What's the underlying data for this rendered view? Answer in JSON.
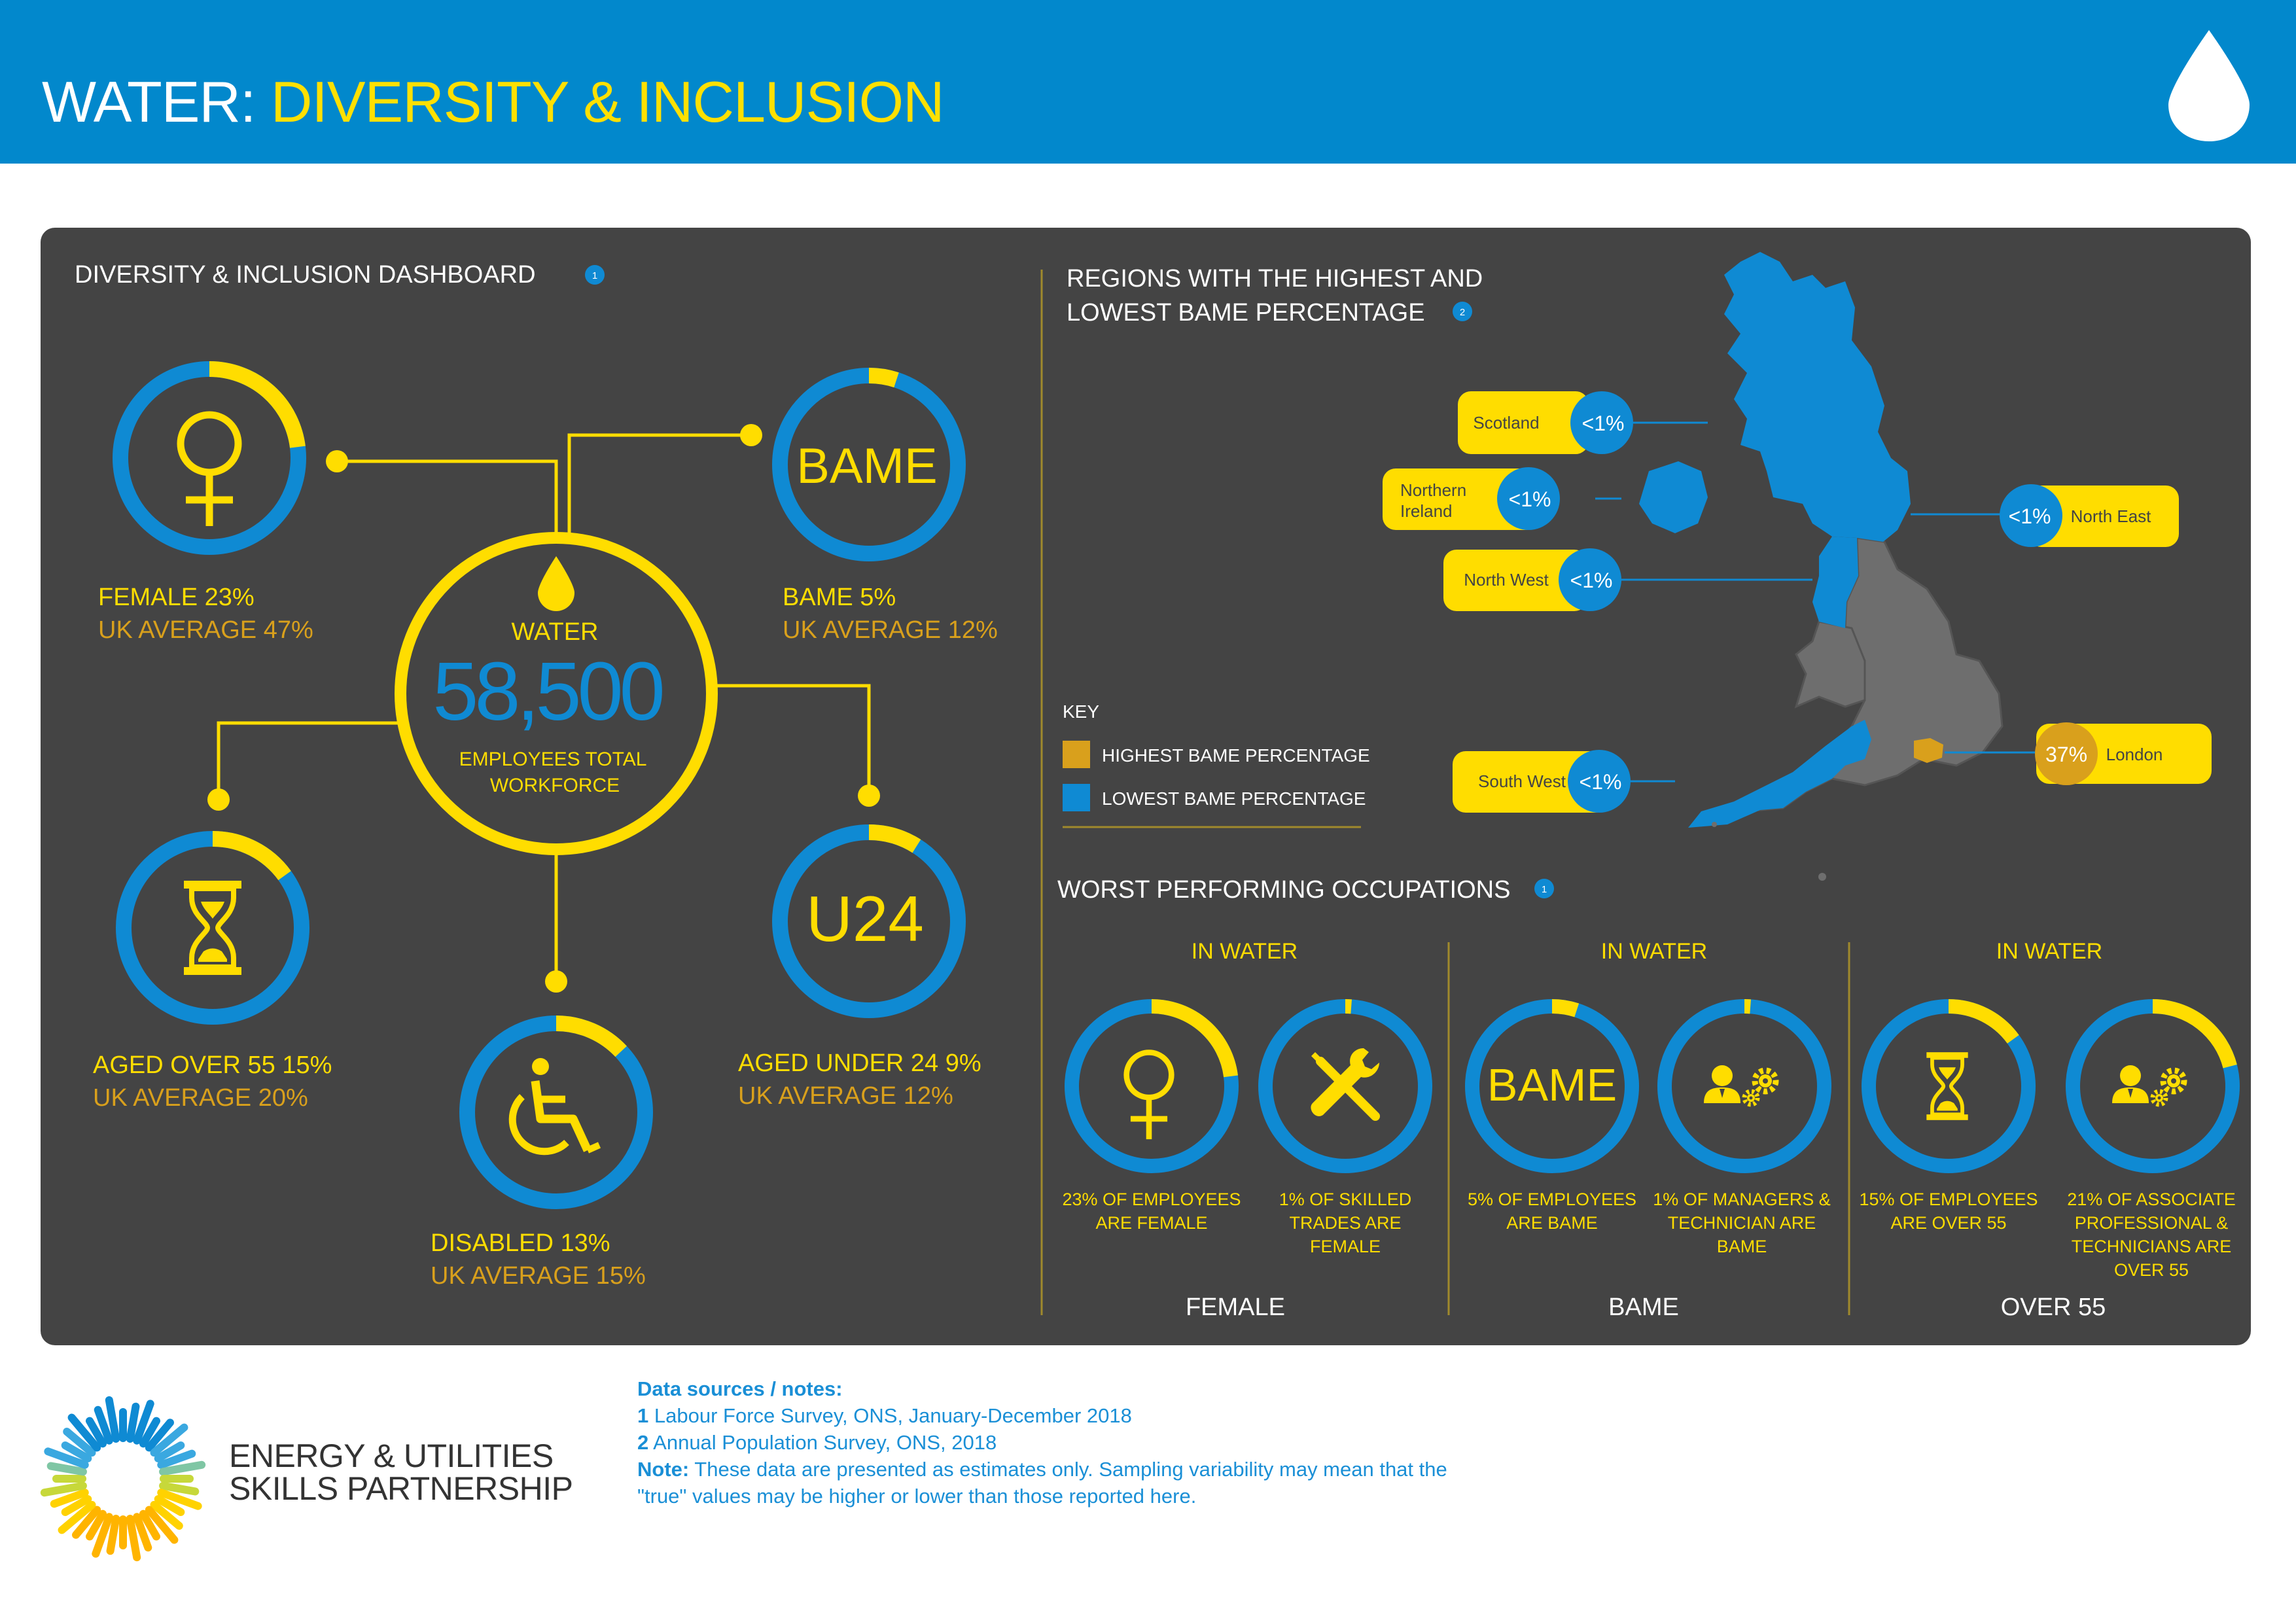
{
  "header": {
    "title_primary": "WATER:",
    "title_secondary": "DIVERSITY & INCLUSION"
  },
  "dashboard": {
    "title": "DIVERSITY & INCLUSION DASHBOARD",
    "note_marker": "1",
    "center": {
      "label": "WATER",
      "total": "58,500",
      "caption_line1": "EMPLOYEES TOTAL",
      "caption_line2": "WORKFORCE"
    },
    "female": {
      "value": "FEMALE 23%",
      "avg": "UK AVERAGE 47%",
      "fraction": 0.23
    },
    "bame": {
      "ring_text": "BAME",
      "value": "BAME 5%",
      "avg": "UK AVERAGE 12%",
      "fraction": 0.05
    },
    "over55": {
      "value": "AGED OVER 55  15%",
      "avg": "UK AVERAGE 20%",
      "fraction": 0.15
    },
    "disabled": {
      "value": "DISABLED 13%",
      "avg": "UK AVERAGE 15%",
      "fraction": 0.13
    },
    "under24": {
      "ring_text": "U24",
      "value": "AGED UNDER 24  9%",
      "avg": "UK AVERAGE 12%",
      "fraction": 0.09
    }
  },
  "regions": {
    "title_line1": "REGIONS WITH THE HIGHEST AND",
    "title_line2": "LOWEST BAME PERCENTAGE",
    "note_marker": "2",
    "items": [
      {
        "name": "Scotland",
        "value": "<1%"
      },
      {
        "name_line1": "Northern",
        "name_line2": "Ireland",
        "value": "<1%"
      },
      {
        "name": "North West",
        "value": "<1%"
      },
      {
        "name": "North East",
        "value": "<1%"
      },
      {
        "name": "South West",
        "value": "<1%"
      },
      {
        "name": "London",
        "value": "37%"
      }
    ],
    "key_title": "KEY",
    "key_high": "HIGHEST BAME PERCENTAGE",
    "key_low": "LOWEST BAME PERCENTAGE"
  },
  "occupations": {
    "title": "WORST PERFORMING OCCUPATIONS",
    "note_marker": "1",
    "groups": [
      {
        "heading": "IN WATER",
        "footer": "FEMALE",
        "items": [
          {
            "fraction": 0.23,
            "lines": [
              "23% OF EMPLOYEES",
              "ARE FEMALE"
            ]
          },
          {
            "fraction": 0.01,
            "lines": [
              "1% OF SKILLED",
              "TRADES ARE",
              "FEMALE"
            ]
          }
        ]
      },
      {
        "heading": "IN WATER",
        "footer": "BAME",
        "items": [
          {
            "ring_text": "BAME",
            "fraction": 0.05,
            "lines": [
              "5% OF EMPLOYEES",
              "ARE BAME"
            ]
          },
          {
            "fraction": 0.01,
            "lines": [
              "1% OF MANAGERS &",
              "TECHNICIAN ARE",
              "BAME"
            ]
          }
        ]
      },
      {
        "heading": "IN WATER",
        "footer": "OVER 55",
        "items": [
          {
            "fraction": 0.15,
            "lines": [
              "15% OF EMPLOYEES",
              "ARE OVER 55"
            ]
          },
          {
            "fraction": 0.21,
            "lines": [
              "21% OF ASSOCIATE",
              "PROFESSIONAL &",
              "TECHNICIANS ARE",
              "OVER 55"
            ]
          }
        ]
      }
    ]
  },
  "footer": {
    "org_line1": "ENERGY & UTILITIES",
    "org_line2": "SKILLS PARTNERSHIP",
    "sources_title": "Data sources / notes:",
    "source1_num": "1",
    "source1": "Labour Force Survey, ONS, January-December 2018",
    "source2_num": "2",
    "source2": "Annual Population Survey, ONS, 2018",
    "note_label": "Note:",
    "note_line1": "These data are presented as estimates only.  Sampling variability may mean that the",
    "note_line2": "\"true\" values may be higher or lower than those reported here."
  },
  "colors": {
    "blue": "#0288cc",
    "ring_blue": "#0f8ad3",
    "yellow": "#ffdd00",
    "gold": "#d9a01c",
    "panel": "#444444",
    "map_grey": "#6e6e6e"
  }
}
